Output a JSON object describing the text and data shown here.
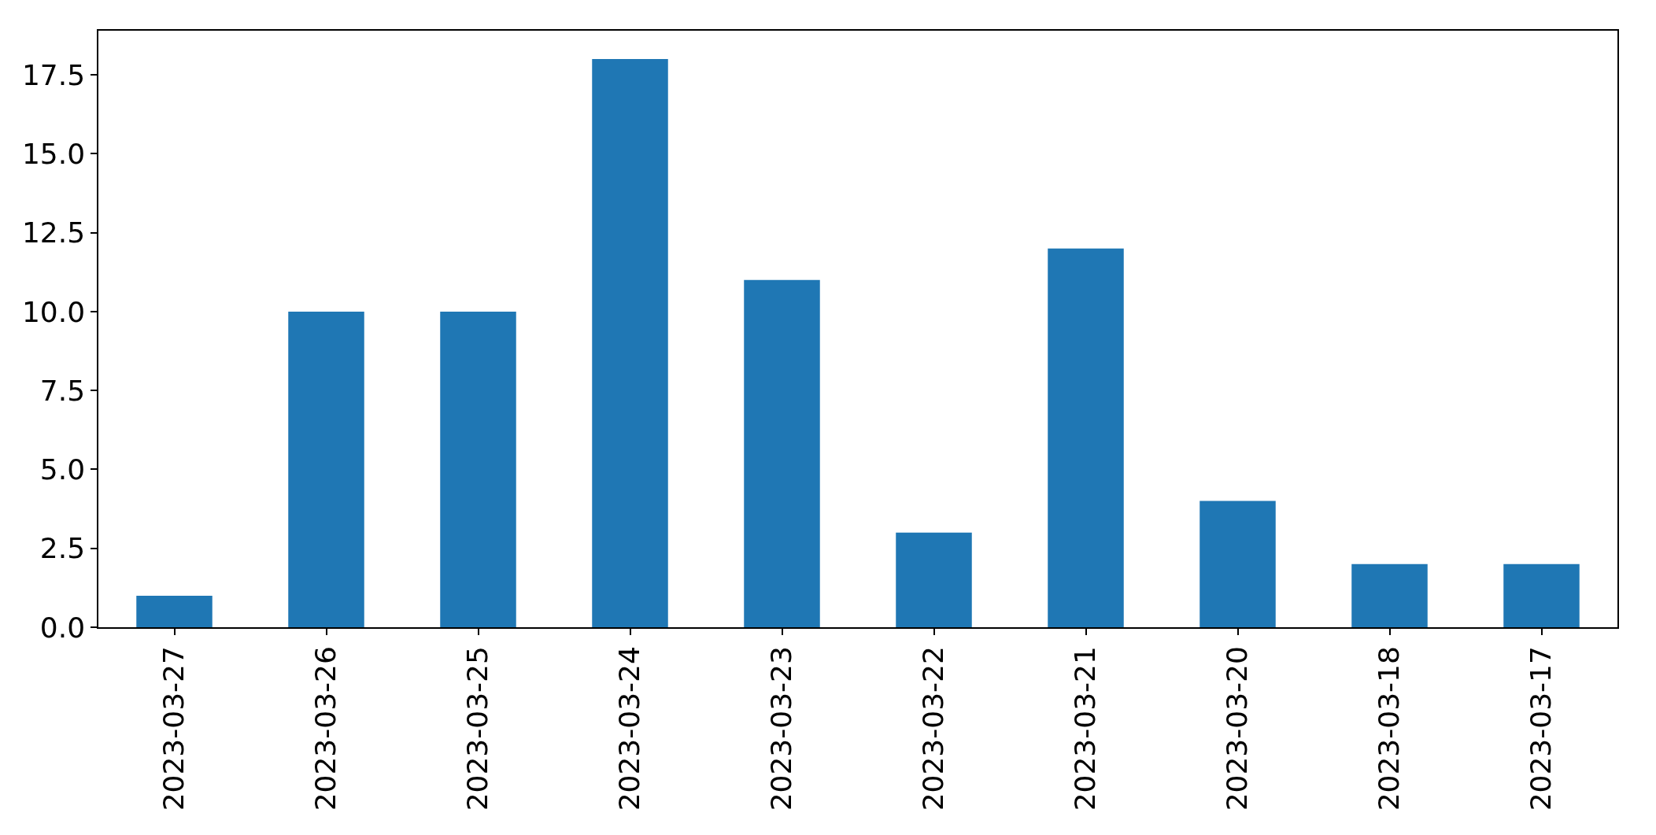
{
  "chart_data": {
    "type": "bar",
    "categories": [
      "2023-03-27",
      "2023-03-26",
      "2023-03-25",
      "2023-03-24",
      "2023-03-23",
      "2023-03-22",
      "2023-03-21",
      "2023-03-20",
      "2023-03-18",
      "2023-03-17"
    ],
    "values": [
      1,
      10,
      10,
      18,
      11,
      3,
      12,
      4,
      2,
      2
    ],
    "color": "#1f77b4",
    "ylim": [
      0,
      18.9
    ],
    "yticks": [
      {
        "value": 0,
        "label": "0.0"
      },
      2.5,
      {
        "value": 5,
        "label": "5.0"
      },
      7.5,
      {
        "value": 10,
        "label": "10.0"
      },
      12.5,
      {
        "value": 15,
        "label": "15.0"
      },
      17.5
    ],
    "legend": false
  }
}
